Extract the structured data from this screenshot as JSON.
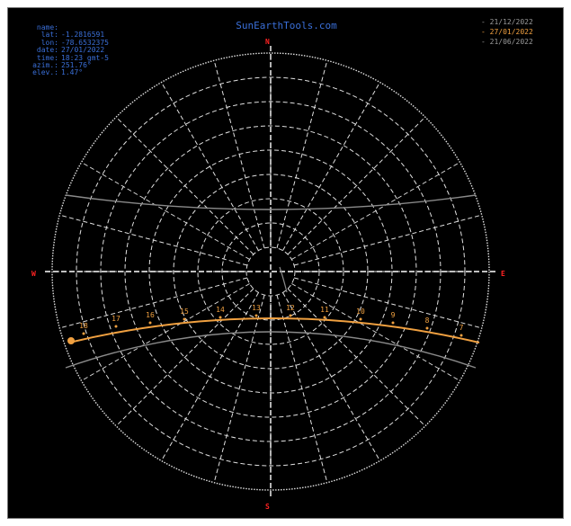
{
  "brand": "SunEarthTools.com",
  "info": {
    "name_label": "name:",
    "lat_label": "lat:",
    "lat_value": "-1.2816591",
    "lon_label": "lon:",
    "lon_value": "-78.6532375",
    "date_label": "date:",
    "date_value": "27/01/2022",
    "time_label": "time:",
    "time_value": "18:23 gmt-5",
    "azim_label": "azim.:",
    "azim_value": "251.76°",
    "elev_label": "elev.:",
    "elev_value": "1.47°"
  },
  "legend": [
    {
      "label": "21/12/2022",
      "color": "#9a9a9a"
    },
    {
      "label": "27/01/2022",
      "color": "#f0a040"
    },
    {
      "label": "21/06/2022",
      "color": "#9a9a9a"
    }
  ],
  "directions": {
    "north": "N",
    "south": "S",
    "east": "E",
    "west": "W"
  },
  "hour_labels": [
    "18",
    "17",
    "16",
    "15",
    "14",
    "13",
    "12",
    "11",
    "10",
    "9",
    "8",
    "7"
  ],
  "colors": {
    "background": "#000000",
    "grid": "#e0e0e0",
    "path_today": "#f0a040",
    "path_other": "#8a8a8a",
    "text_blue": "#3a6fd8",
    "direction": "#ff2222"
  },
  "sun": {
    "azimuth_deg": 251.76,
    "elevation_deg": 1.47
  }
}
